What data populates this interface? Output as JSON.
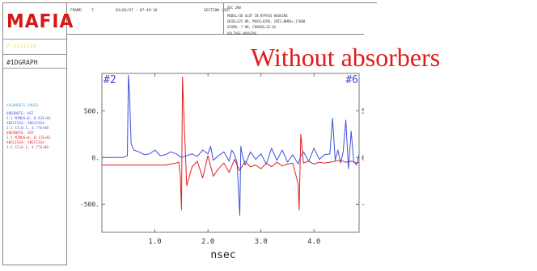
{
  "panel": {
    "logo": "MAFIA",
    "yellow_label": "P-11111IN",
    "graph_label": "#1DGRAPH",
    "legend_title": "ARGUMENTS-ORDER",
    "blue_lines": [
      "ORDINATE: HST",
      "1:1 MINUS=0, 0.61E+02",
      "ABSCISSA: ABSCISSA",
      "2:1 ST=0.1, 4.77E+00"
    ],
    "red_lines": [
      "ORDINATE: HST",
      "1:1 MINUS=0, 0.11E+02",
      "ABSCISSA: ABSCISSA",
      "2:1 ST=0.1, 4.77E+00"
    ]
  },
  "header": {
    "frame_label": "FRAME:",
    "frame_num": "7",
    "date": "01/02/97 - 07:49:16",
    "section": "SECTION (28)",
    "right_title": "SEC 2HD",
    "right_lines": [
      "MODEL/3D SLOT IN BYPASS HOUSING",
      "GRID=125 HR, MAXX=4298, INTC=NHD4+_17000",
      "SIGMA: 7 HR, CHARGE=1E-03"
    ],
    "right_footer": "VOLTAGE HOUSING"
  },
  "annotation": "Without absorbers",
  "colors": {
    "blue": "#3f4fd9",
    "red": "#e02020",
    "axis": "#555555"
  },
  "chart_data": {
    "type": "line",
    "xlabel": "nsec",
    "x_ticks": [
      1.0,
      2.0,
      3.0,
      4.0
    ],
    "x_tick_labels": [
      "1.0",
      "2.0",
      "3.0",
      "4.0"
    ],
    "xlim": [
      0.0,
      4.85
    ],
    "left_axis": {
      "label": "#2",
      "ticks": [
        500,
        0,
        -500
      ],
      "tick_labels": [
        "500.",
        "0.",
        "-500."
      ],
      "ylim": [
        -800,
        900
      ]
    },
    "right_axis": {
      "label": "#6",
      "ticks": [
        500,
        0,
        -500
      ],
      "tick_labels": [
        "500.",
        "0.",
        "-500."
      ],
      "ylim": [
        -800,
        900
      ]
    },
    "series": [
      {
        "color": "blue",
        "axis": "left",
        "x": [
          0.0,
          0.4,
          0.48,
          0.5,
          0.52,
          0.55,
          0.6,
          0.7,
          0.8,
          0.9,
          1.0,
          1.1,
          1.2,
          1.3,
          1.4,
          1.5,
          1.6,
          1.7,
          1.8,
          1.9,
          2.0,
          2.05,
          2.1,
          2.2,
          2.3,
          2.4,
          2.45,
          2.5,
          2.55,
          2.58,
          2.6,
          2.62,
          2.65,
          2.7,
          2.8,
          2.9,
          3.0,
          3.1,
          3.2,
          3.3,
          3.4,
          3.5,
          3.6,
          3.7,
          3.75,
          3.8,
          3.9,
          4.0,
          4.1,
          4.2,
          4.3,
          4.35,
          4.4,
          4.45,
          4.5,
          4.55,
          4.6,
          4.65,
          4.7,
          4.75,
          4.8,
          4.85
        ],
        "y": [
          0,
          0,
          20,
          880,
          700,
          150,
          80,
          60,
          30,
          40,
          80,
          20,
          30,
          60,
          40,
          0,
          20,
          40,
          10,
          80,
          40,
          120,
          -30,
          20,
          60,
          -40,
          80,
          30,
          -60,
          -400,
          -620,
          120,
          20,
          -80,
          60,
          -20,
          40,
          -70,
          100,
          -30,
          80,
          -50,
          30,
          -70,
          20,
          60,
          -40,
          100,
          -20,
          30,
          40,
          420,
          -30,
          80,
          -60,
          60,
          400,
          -120,
          280,
          -40,
          -80,
          30
        ]
      },
      {
        "color": "red",
        "axis": "right",
        "x": [
          0.0,
          1.0,
          1.2,
          1.3,
          1.4,
          1.45,
          1.48,
          1.5,
          1.52,
          1.55,
          1.6,
          1.7,
          1.8,
          1.9,
          2.0,
          2.1,
          2.2,
          2.3,
          2.4,
          2.5,
          2.6,
          2.7,
          2.8,
          2.9,
          3.0,
          3.1,
          3.2,
          3.3,
          3.4,
          3.5,
          3.6,
          3.7,
          3.72,
          3.75,
          3.8,
          3.9,
          4.0,
          4.1,
          4.2,
          4.3,
          4.4,
          4.5,
          4.6,
          4.7,
          4.8,
          4.85
        ],
        "y": [
          -80,
          -80,
          -80,
          -70,
          -60,
          -50,
          -200,
          -560,
          860,
          400,
          -300,
          -100,
          -40,
          -220,
          20,
          -200,
          -120,
          -60,
          -160,
          -20,
          -140,
          -40,
          -100,
          -80,
          -120,
          -60,
          -100,
          -50,
          -90,
          -70,
          -60,
          -280,
          -560,
          250,
          -60,
          -40,
          -70,
          -50,
          -60,
          -50,
          -40,
          -30,
          -50,
          -40,
          -60,
          -50
        ]
      }
    ],
    "grid": false,
    "legend": "none"
  }
}
